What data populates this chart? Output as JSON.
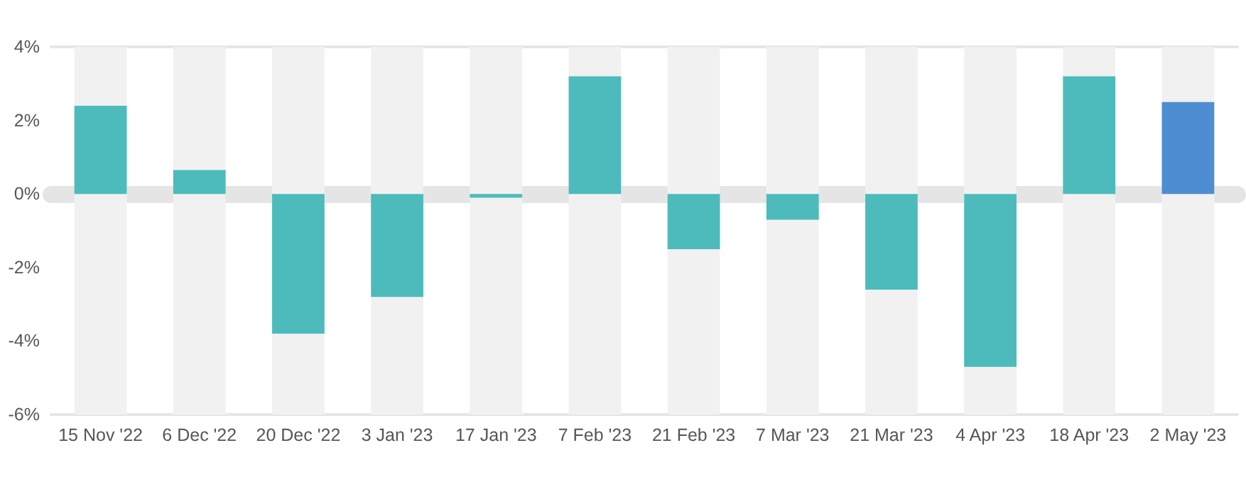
{
  "chart_data": {
    "type": "bar",
    "categories": [
      "15 Nov '22",
      "6 Dec '22",
      "20 Dec '22",
      "3 Jan '23",
      "17 Jan '23",
      "7 Feb '23",
      "21 Feb '23",
      "7 Mar '23",
      "21 Mar '23",
      "4 Apr '23",
      "18 Apr '23",
      "2 May '23"
    ],
    "values": [
      2.4,
      0.65,
      -3.8,
      -2.8,
      -0.1,
      3.2,
      -1.5,
      -0.7,
      -2.6,
      -4.7,
      3.2,
      2.5
    ],
    "colors": [
      "#4dbbbc",
      "#4dbbbc",
      "#4dbbbc",
      "#4dbbbc",
      "#4dbbbc",
      "#4dbbbc",
      "#4dbbbc",
      "#4dbbbc",
      "#4dbbbc",
      "#4dbbbc",
      "#4dbbbc",
      "#4f8dd3"
    ],
    "ylim": [
      -6,
      4
    ],
    "yticks": [
      {
        "value": -6,
        "label": "-6%"
      },
      {
        "value": -4,
        "label": "-4%"
      },
      {
        "value": -2,
        "label": "-2%"
      },
      {
        "value": 0,
        "label": "0%"
      },
      {
        "value": 2,
        "label": "2%"
      },
      {
        "value": 4,
        "label": "4%"
      }
    ]
  }
}
